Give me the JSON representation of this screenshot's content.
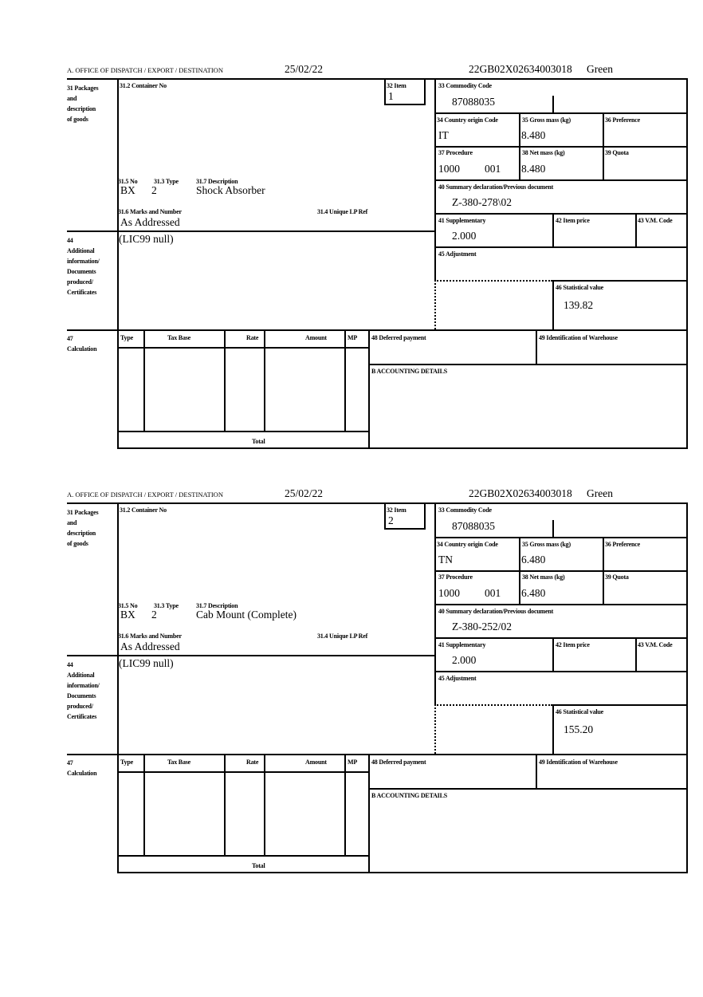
{
  "labels": {
    "office": "A.  OFFICE OF DISPATCH / EXPORT / DESTINATION",
    "box31": "31 Packages\nand\ndescription\nof goods",
    "box31_2": "31.2 Container No",
    "box32": "32 Item",
    "box31_5": "31.5 No",
    "box31_3": "31.3 Type",
    "box31_7": "31.7 Description",
    "box31_6": "31.6 Marks and Number",
    "box31_4": "31.4 Unique LP Ref",
    "box44": "44\nAdditional\ninformation/\nDocuments\nproduced/\nCertificates",
    "box33": "33 Commodity Code",
    "box34": "34 Country origin Code",
    "box35": "35 Gross mass (kg)",
    "box36": "36 Preference",
    "box37": "37 Procedure",
    "box38": "38 Net mass (kg)",
    "box39": "39 Quota",
    "box40": "40 Summary declaration/Previous document",
    "box41": "41 Supplementary",
    "box42": "42 Item price",
    "box43": "43 V.M. Code",
    "box45": "45 Adjustment",
    "box46": "46 Statistical value",
    "box47": "47\nCalculation",
    "col_type": "Type",
    "col_taxbase": "Tax Base",
    "col_rate": "Rate",
    "col_amount": "Amount",
    "col_mp": "MP",
    "box48": "48 Deferred payment",
    "box49": "49 Identification of Warehouse",
    "boxB": "B ACCOUNTING DETAILS",
    "total": "Total"
  },
  "forms": [
    {
      "date": "25/02/22",
      "reference": "22GB02X02634003018",
      "route": "Green",
      "item": "1",
      "packages_kind": "BX",
      "packages_number": "2",
      "description": "Shock Absorber",
      "marks": "As Addressed",
      "additional_info": "(LIC99 null)",
      "commodity_code": "87088035",
      "country_origin": "IT",
      "gross_mass": "8.480",
      "procedure": "1000",
      "procedure_additional": "001",
      "net_mass": "8.480",
      "previous_document": "Z-380-278\\02",
      "supplementary": "2.000",
      "statistical_value": "139.82"
    },
    {
      "date": "25/02/22",
      "reference": "22GB02X02634003018",
      "route": "Green",
      "item": "2",
      "packages_kind": "BX",
      "packages_number": "2",
      "description": "Cab Mount (Complete)",
      "marks": "As Addressed",
      "additional_info": "(LIC99 null)",
      "commodity_code": "87088035",
      "country_origin": "TN",
      "gross_mass": "6.480",
      "procedure": "1000",
      "procedure_additional": "001",
      "net_mass": "6.480",
      "previous_document": "Z-380-252/02",
      "supplementary": "2.000",
      "statistical_value": "155.20"
    }
  ]
}
